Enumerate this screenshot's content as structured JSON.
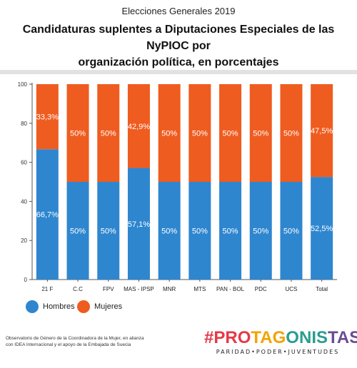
{
  "header": {
    "supertitle": "Elecciones Generales 2019",
    "title_line1": "Candidaturas suplentes a Diputaciones Especiales de las NyPIOC por",
    "title_line2": "organización política, en porcentajes"
  },
  "colors": {
    "hombres": "#2e86cf",
    "mujeres": "#ef5c1f",
    "brand_gradient": [
      "#e63946",
      "#f4a300",
      "#2a9d8f",
      "#6a4c93"
    ]
  },
  "chart_data": {
    "type": "bar",
    "stacked": true,
    "categories": [
      "21 F",
      "C.C",
      "FPV",
      "MAS - IPSP",
      "MNR",
      "MTS",
      "PAN - BOL",
      "PDC",
      "UCS",
      "Total"
    ],
    "series": [
      {
        "name": "Hombres",
        "values": [
          66.7,
          50,
          50,
          57.1,
          50,
          50,
          50,
          50,
          50,
          52.5
        ],
        "labels": [
          "66,7%",
          "50%",
          "50%",
          "57,1%",
          "50%",
          "50%",
          "50%",
          "50%",
          "50%",
          "52,5%"
        ]
      },
      {
        "name": "Mujeres",
        "values": [
          33.3,
          50,
          50,
          42.9,
          50,
          50,
          50,
          50,
          50,
          47.5
        ],
        "labels": [
          "33,3%",
          "50%",
          "50%",
          "42,9%",
          "50%",
          "50%",
          "50%",
          "50%",
          "50%",
          "47,5%"
        ]
      }
    ],
    "ylim": [
      0,
      100
    ],
    "yticks": [
      "0",
      "20",
      "40",
      "60",
      "80",
      "100"
    ],
    "legend_position": "bottom-left",
    "grid": false
  },
  "legend": {
    "hombres_label": "Hombres",
    "mujeres_label": "Mujeres"
  },
  "footer": {
    "credit_line1": "Observatorio de Género de la Coordinadora de la Mujer, en alianza",
    "credit_line2": "con IDEA Internacional y el apoyo de la Embajada de Suecia",
    "brand_title": "#PROTAGONISTAS",
    "brand_subtitle": "PARIDAD•PODER•JUVENTUDES"
  }
}
